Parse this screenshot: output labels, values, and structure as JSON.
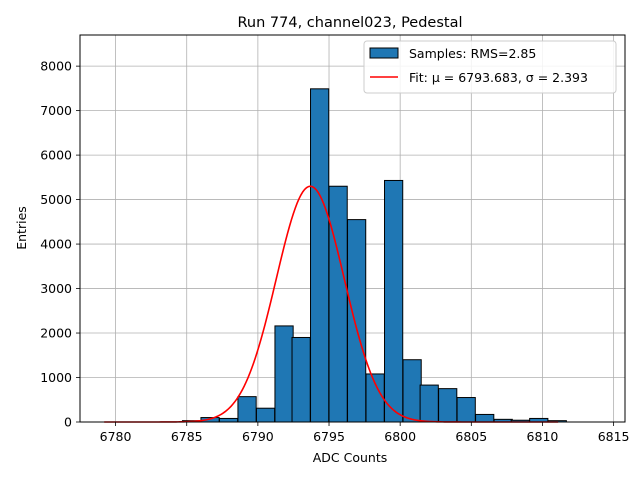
{
  "chart_data": {
    "type": "bar",
    "title": "Run 774, channel023, Pedestal",
    "xlabel": "ADC Counts",
    "ylabel": "Entries",
    "xlim": [
      6777.5,
      6815.8
    ],
    "ylim": [
      0,
      8700
    ],
    "xticks": [
      6780,
      6785,
      6790,
      6795,
      6800,
      6805,
      6810,
      6815
    ],
    "yticks": [
      0,
      1000,
      2000,
      3000,
      4000,
      5000,
      6000,
      7000,
      8000
    ],
    "grid": true,
    "legend_position": "top-right",
    "bin_width": 1.28,
    "histogram": {
      "name": "Samples: RMS=2.85",
      "color": "#1f77b4",
      "bins": [
        {
          "left": 6784.7,
          "value": 30
        },
        {
          "left": 6786.0,
          "value": 100
        },
        {
          "left": 6787.3,
          "value": 80
        },
        {
          "left": 6788.6,
          "value": 570
        },
        {
          "left": 6789.9,
          "value": 310
        },
        {
          "left": 6791.2,
          "value": 2160
        },
        {
          "left": 6792.4,
          "value": 1900
        },
        {
          "left": 6793.7,
          "value": 7490
        },
        {
          "left": 6795.0,
          "value": 5300
        },
        {
          "left": 6796.3,
          "value": 4550
        },
        {
          "left": 6797.6,
          "value": 1080
        },
        {
          "left": 6798.9,
          "value": 5430
        },
        {
          "left": 6800.2,
          "value": 1400
        },
        {
          "left": 6801.4,
          "value": 830
        },
        {
          "left": 6802.7,
          "value": 750
        },
        {
          "left": 6804.0,
          "value": 550
        },
        {
          "left": 6805.3,
          "value": 170
        },
        {
          "left": 6806.6,
          "value": 60
        },
        {
          "left": 6807.8,
          "value": 40
        },
        {
          "left": 6809.1,
          "value": 80
        },
        {
          "left": 6810.4,
          "value": 30
        }
      ]
    },
    "fit": {
      "name": "Fit: μ = 6793.683, σ = 2.393",
      "color": "#ff0000",
      "mu": 6793.683,
      "sigma": 2.393,
      "amplitude": 5300,
      "x_range": [
        6779.2,
        6811.1
      ]
    }
  }
}
